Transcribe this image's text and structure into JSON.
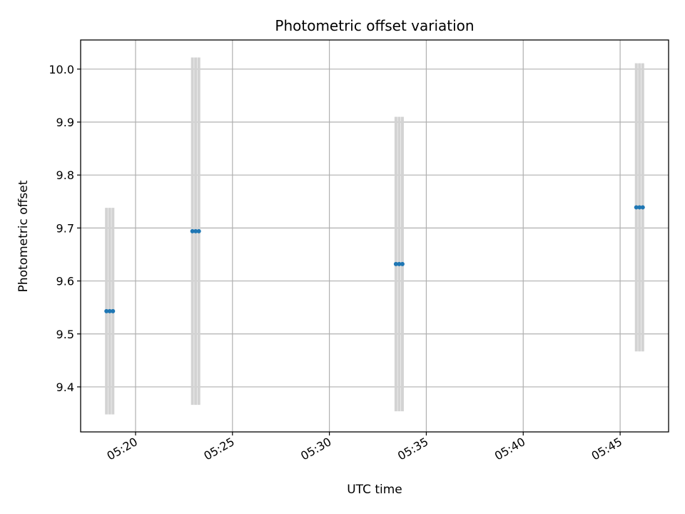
{
  "chart_data": {
    "type": "scatter",
    "title": "Photometric offset variation",
    "xlabel": "UTC time",
    "ylabel": "Photometric offset",
    "x_axis_kind": "time",
    "xlim": [
      "05:17:10",
      "05:47:30"
    ],
    "ylim": [
      9.315,
      10.055
    ],
    "grid": true,
    "x_ticks": [
      "05:20",
      "05:25",
      "05:30",
      "05:35",
      "05:40",
      "05:45"
    ],
    "y_ticks": [
      9.4,
      9.5,
      9.6,
      9.7,
      9.8,
      9.9,
      10.0
    ],
    "y_tick_labels": [
      "9.4",
      "9.5",
      "9.6",
      "9.7",
      "9.8",
      "9.9",
      "10.0"
    ],
    "series": [
      {
        "color": "#1f77b4",
        "errorbar_color": "#d3d3d3",
        "points": [
          {
            "x": "05:18:30",
            "y": 9.543,
            "yerr": 0.195
          },
          {
            "x": "05:18:40",
            "y": 9.543,
            "yerr": 0.195
          },
          {
            "x": "05:18:50",
            "y": 9.543,
            "yerr": 0.195
          },
          {
            "x": "05:22:56",
            "y": 9.694,
            "yerr": 0.328
          },
          {
            "x": "05:23:06",
            "y": 9.694,
            "yerr": 0.328
          },
          {
            "x": "05:23:16",
            "y": 9.694,
            "yerr": 0.328
          },
          {
            "x": "05:33:26",
            "y": 9.632,
            "yerr": 0.278
          },
          {
            "x": "05:33:36",
            "y": 9.632,
            "yerr": 0.278
          },
          {
            "x": "05:33:46",
            "y": 9.632,
            "yerr": 0.278
          },
          {
            "x": "05:45:50",
            "y": 9.739,
            "yerr": 0.272
          },
          {
            "x": "05:46:00",
            "y": 9.739,
            "yerr": 0.272
          },
          {
            "x": "05:46:10",
            "y": 9.739,
            "yerr": 0.272
          }
        ]
      }
    ]
  }
}
